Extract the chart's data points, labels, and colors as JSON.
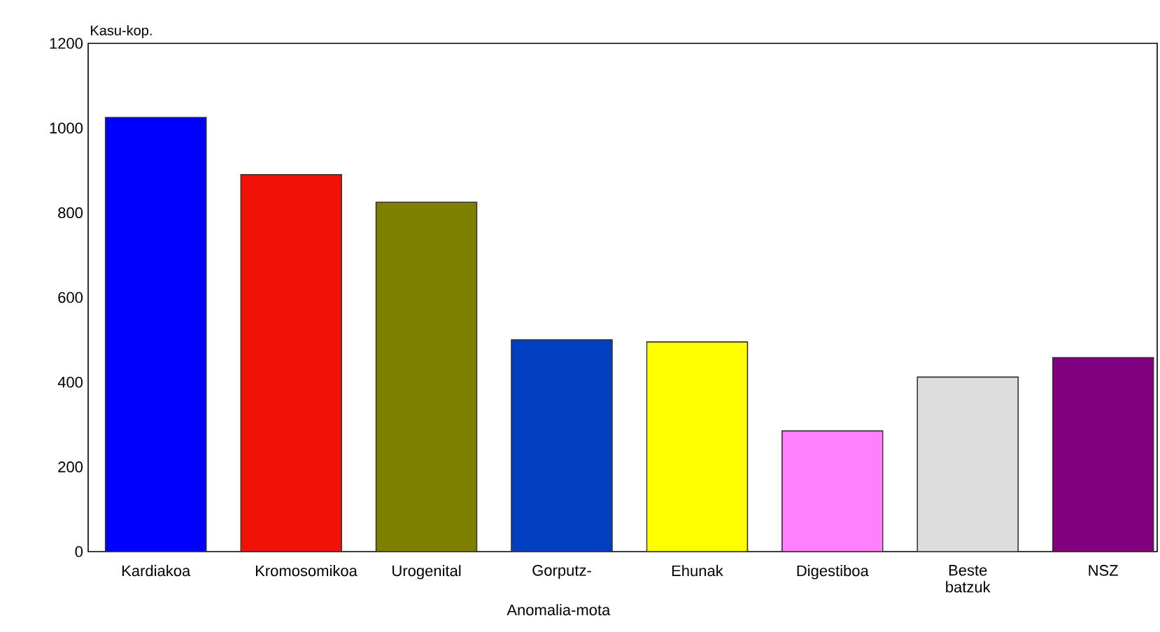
{
  "chart_data": {
    "type": "bar",
    "xlabel": "Anomalia-mota",
    "ylabel": "Kasu-kop.",
    "categories": [
      "Kardiakoa",
      "Kromosomikoa",
      "Urogenital",
      "Gorputz-",
      "Ehunak",
      "Digestiboa",
      "Beste batzuk",
      "NSZ"
    ],
    "values": [
      1025,
      890,
      825,
      500,
      495,
      285,
      412,
      458
    ],
    "colors": [
      "#0000ff",
      "#f21107",
      "#808000",
      "#0040c0",
      "#ffff00",
      "#ff80ff",
      "#dddddd",
      "#800080"
    ],
    "ylim": [
      0,
      1200
    ],
    "yticks": [
      0,
      200,
      400,
      600,
      800,
      1000,
      1200
    ],
    "grid": false
  }
}
